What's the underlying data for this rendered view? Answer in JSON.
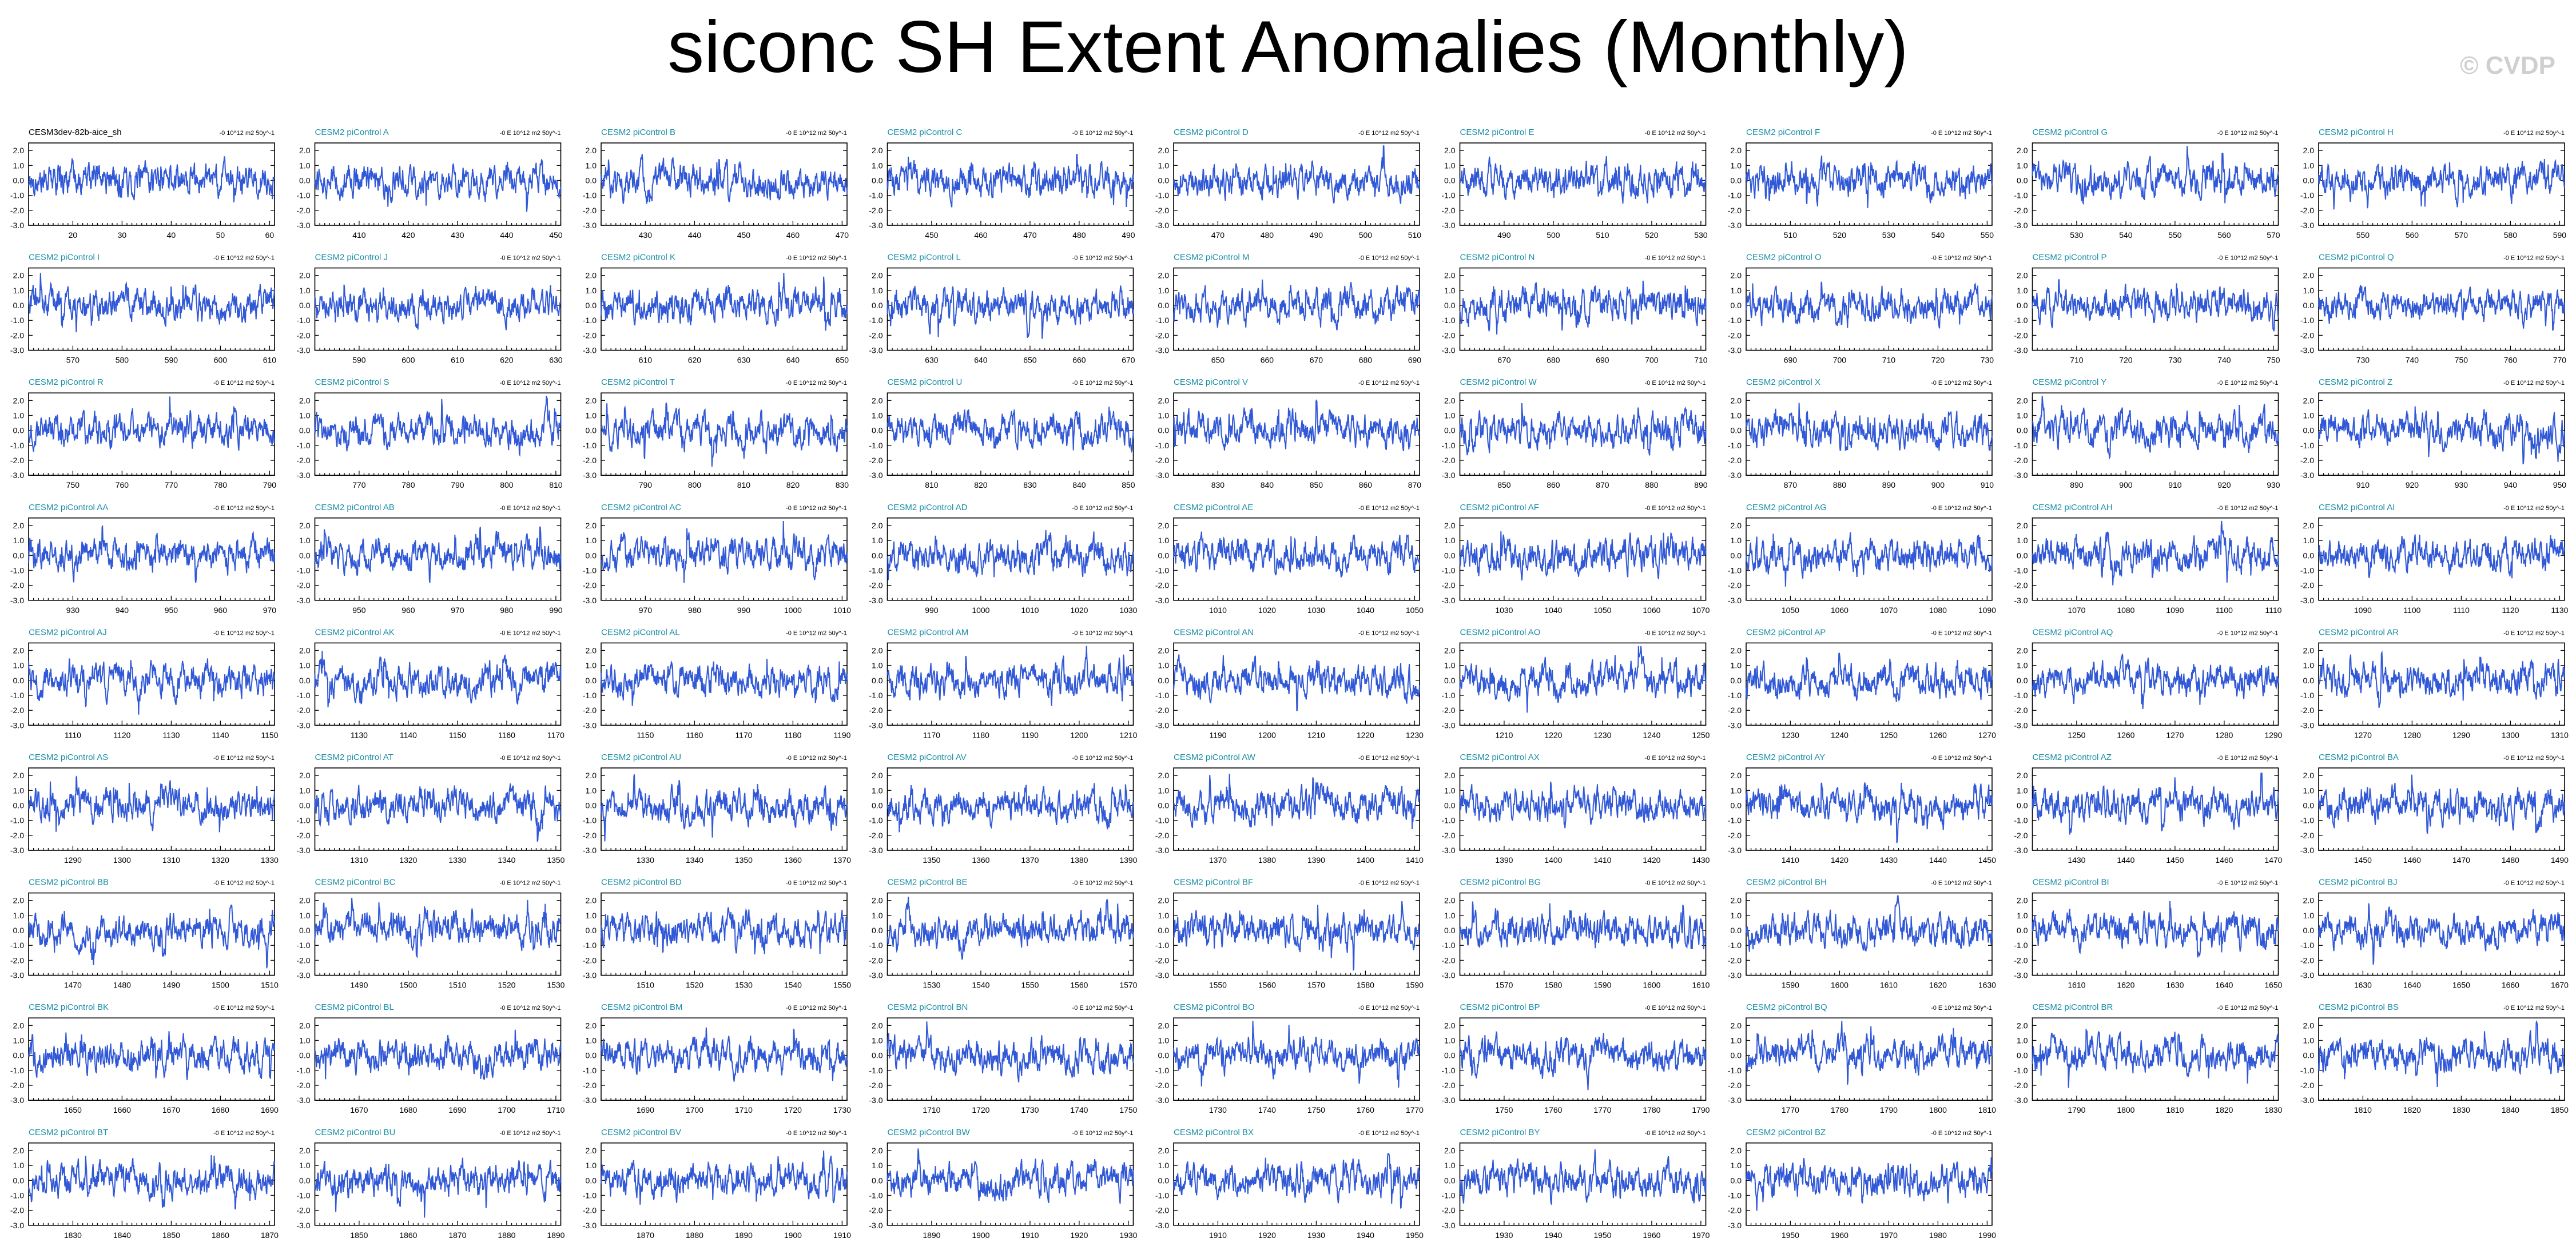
{
  "title": "siconc SH Extent Anomalies (Monthly)",
  "watermark": "© CVDP",
  "colors": {
    "series": "#3158d6",
    "panel_title": "#1a8fa6",
    "first_title": "#000000",
    "watermark": "#cfcfcf"
  },
  "chart_data": {
    "type": "line",
    "layout": "small-multiples",
    "columns": 9,
    "units": "E 10^12 m2 50y^-1",
    "units_value": "-0",
    "ylim": [
      -3,
      2.5
    ],
    "yticks": [
      "2.0",
      "1.0",
      "0.0",
      "-1.0",
      "-2.0",
      "-3.0"
    ],
    "panels": [
      {
        "name": "CESM3dev-82b-aice_sh",
        "xlim": [
          11,
          61
        ],
        "xticks": [
          20,
          30,
          40,
          50,
          60
        ],
        "units": "-0 10^12 m2 50y^-1",
        "yticks": [
          "2.0",
          "1.0",
          "0.0",
          "-1.0",
          "-2.0",
          "-3.0"
        ]
      },
      {
        "name": "CESM2 piControl A",
        "xlim": [
          401,
          451
        ],
        "xticks": [
          410,
          420,
          430,
          440,
          450
        ]
      },
      {
        "name": "CESM2 piControl B",
        "xlim": [
          421,
          471
        ],
        "xticks": [
          430,
          440,
          450,
          460,
          470
        ]
      },
      {
        "name": "CESM2 piControl C",
        "xlim": [
          441,
          491
        ],
        "xticks": [
          450,
          460,
          470,
          480,
          490
        ]
      },
      {
        "name": "CESM2 piControl D",
        "xlim": [
          461,
          511
        ],
        "xticks": [
          470,
          480,
          490,
          500,
          510
        ]
      },
      {
        "name": "CESM2 piControl E",
        "xlim": [
          481,
          531
        ],
        "xticks": [
          490,
          500,
          510,
          520,
          530
        ]
      },
      {
        "name": "CESM2 piControl F",
        "xlim": [
          501,
          551
        ],
        "xticks": [
          510,
          520,
          530,
          540,
          550
        ]
      },
      {
        "name": "CESM2 piControl G",
        "xlim": [
          521,
          571
        ],
        "xticks": [
          530,
          540,
          550,
          560,
          570
        ]
      },
      {
        "name": "CESM2 piControl H",
        "xlim": [
          541,
          591
        ],
        "xticks": [
          550,
          560,
          570,
          580,
          590
        ]
      },
      {
        "name": "CESM2 piControl I",
        "xlim": [
          561,
          611
        ],
        "xticks": [
          570,
          580,
          590,
          600,
          610
        ]
      },
      {
        "name": "CESM2 piControl J",
        "xlim": [
          581,
          631
        ],
        "xticks": [
          590,
          600,
          610,
          620,
          630
        ]
      },
      {
        "name": "CESM2 piControl K",
        "xlim": [
          601,
          651
        ],
        "xticks": [
          610,
          620,
          630,
          640,
          650
        ]
      },
      {
        "name": "CESM2 piControl L",
        "xlim": [
          621,
          671
        ],
        "xticks": [
          630,
          640,
          650,
          660,
          670
        ]
      },
      {
        "name": "CESM2 piControl M",
        "xlim": [
          641,
          691
        ],
        "xticks": [
          650,
          660,
          670,
          680,
          690
        ]
      },
      {
        "name": "CESM2 piControl N",
        "xlim": [
          661,
          711
        ],
        "xticks": [
          670,
          680,
          690,
          700,
          710
        ]
      },
      {
        "name": "CESM2 piControl O",
        "xlim": [
          681,
          731
        ],
        "xticks": [
          690,
          700,
          710,
          720,
          730
        ]
      },
      {
        "name": "CESM2 piControl P",
        "xlim": [
          701,
          751
        ],
        "xticks": [
          710,
          720,
          730,
          740,
          750
        ]
      },
      {
        "name": "CESM2 piControl Q",
        "xlim": [
          721,
          771
        ],
        "xticks": [
          730,
          740,
          750,
          760,
          770
        ]
      },
      {
        "name": "CESM2 piControl R",
        "xlim": [
          741,
          791
        ],
        "xticks": [
          750,
          760,
          770,
          780,
          790
        ]
      },
      {
        "name": "CESM2 piControl S",
        "xlim": [
          761,
          811
        ],
        "xticks": [
          770,
          780,
          790,
          800,
          810
        ]
      },
      {
        "name": "CESM2 piControl T",
        "xlim": [
          781,
          831
        ],
        "xticks": [
          790,
          800,
          810,
          820,
          830
        ]
      },
      {
        "name": "CESM2 piControl U",
        "xlim": [
          801,
          851
        ],
        "xticks": [
          810,
          820,
          830,
          840,
          850
        ]
      },
      {
        "name": "CESM2 piControl V",
        "xlim": [
          821,
          871
        ],
        "xticks": [
          830,
          840,
          850,
          860,
          870
        ]
      },
      {
        "name": "CESM2 piControl W",
        "xlim": [
          841,
          891
        ],
        "xticks": [
          850,
          860,
          870,
          880,
          890
        ]
      },
      {
        "name": "CESM2 piControl X",
        "xlim": [
          861,
          911
        ],
        "xticks": [
          870,
          880,
          890,
          900,
          910
        ]
      },
      {
        "name": "CESM2 piControl Y",
        "xlim": [
          881,
          931
        ],
        "xticks": [
          890,
          900,
          910,
          920,
          930
        ]
      },
      {
        "name": "CESM2 piControl Z",
        "xlim": [
          901,
          951
        ],
        "xticks": [
          910,
          920,
          930,
          940,
          950
        ]
      },
      {
        "name": "CESM2 piControl AA",
        "xlim": [
          921,
          971
        ],
        "xticks": [
          930,
          940,
          950,
          960,
          970
        ]
      },
      {
        "name": "CESM2 piControl AB",
        "xlim": [
          941,
          991
        ],
        "xticks": [
          950,
          960,
          970,
          980,
          990
        ]
      },
      {
        "name": "CESM2 piControl AC",
        "xlim": [
          961,
          1011
        ],
        "xticks": [
          970,
          980,
          990,
          1000,
          1010
        ]
      },
      {
        "name": "CESM2 piControl AD",
        "xlim": [
          981,
          1031
        ],
        "xticks": [
          990,
          1000,
          1010,
          1020,
          1030
        ]
      },
      {
        "name": "CESM2 piControl AE",
        "xlim": [
          1001,
          1051
        ],
        "xticks": [
          1010,
          1020,
          1030,
          1040,
          1050
        ]
      },
      {
        "name": "CESM2 piControl AF",
        "xlim": [
          1021,
          1071
        ],
        "xticks": [
          1030,
          1040,
          1050,
          1060,
          1070
        ]
      },
      {
        "name": "CESM2 piControl AG",
        "xlim": [
          1041,
          1091
        ],
        "xticks": [
          1050,
          1060,
          1070,
          1080,
          1090
        ]
      },
      {
        "name": "CESM2 piControl AH",
        "xlim": [
          1061,
          1111
        ],
        "xticks": [
          1070,
          1080,
          1090,
          1100,
          1110
        ]
      },
      {
        "name": "CESM2 piControl AI",
        "xlim": [
          1081,
          1131
        ],
        "xticks": [
          1090,
          1100,
          1110,
          1120,
          1130
        ]
      },
      {
        "name": "CESM2 piControl AJ",
        "xlim": [
          1101,
          1151
        ],
        "xticks": [
          1110,
          1120,
          1130,
          1140,
          1150
        ]
      },
      {
        "name": "CESM2 piControl AK",
        "xlim": [
          1121,
          1171
        ],
        "xticks": [
          1130,
          1140,
          1150,
          1160,
          1170
        ]
      },
      {
        "name": "CESM2 piControl AL",
        "xlim": [
          1141,
          1191
        ],
        "xticks": [
          1150,
          1160,
          1170,
          1180,
          1190
        ]
      },
      {
        "name": "CESM2 piControl AM",
        "xlim": [
          1161,
          1211
        ],
        "xticks": [
          1170,
          1180,
          1190,
          1200,
          1210
        ]
      },
      {
        "name": "CESM2 piControl AN",
        "xlim": [
          1181,
          1231
        ],
        "xticks": [
          1190,
          1200,
          1210,
          1220,
          1230
        ]
      },
      {
        "name": "CESM2 piControl AO",
        "xlim": [
          1201,
          1251
        ],
        "xticks": [
          1210,
          1220,
          1230,
          1240,
          1250
        ]
      },
      {
        "name": "CESM2 piControl AP",
        "xlim": [
          1221,
          1271
        ],
        "xticks": [
          1230,
          1240,
          1250,
          1260,
          1270
        ]
      },
      {
        "name": "CESM2 piControl AQ",
        "xlim": [
          1241,
          1291
        ],
        "xticks": [
          1250,
          1260,
          1270,
          1280,
          1290
        ]
      },
      {
        "name": "CESM2 piControl AR",
        "xlim": [
          1261,
          1311
        ],
        "xticks": [
          1270,
          1280,
          1290,
          1300,
          1310
        ]
      },
      {
        "name": "CESM2 piControl AS",
        "xlim": [
          1281,
          1331
        ],
        "xticks": [
          1290,
          1300,
          1310,
          1320,
          1330
        ]
      },
      {
        "name": "CESM2 piControl AT",
        "xlim": [
          1301,
          1351
        ],
        "xticks": [
          1310,
          1320,
          1330,
          1340,
          1350
        ]
      },
      {
        "name": "CESM2 piControl AU",
        "xlim": [
          1321,
          1371
        ],
        "xticks": [
          1330,
          1340,
          1350,
          1360,
          1370
        ]
      },
      {
        "name": "CESM2 piControl AV",
        "xlim": [
          1341,
          1391
        ],
        "xticks": [
          1350,
          1360,
          1370,
          1380,
          1390
        ]
      },
      {
        "name": "CESM2 piControl AW",
        "xlim": [
          1361,
          1411
        ],
        "xticks": [
          1370,
          1380,
          1390,
          1400,
          1410
        ]
      },
      {
        "name": "CESM2 piControl AX",
        "xlim": [
          1381,
          1431
        ],
        "xticks": [
          1390,
          1400,
          1410,
          1420,
          1430
        ]
      },
      {
        "name": "CESM2 piControl AY",
        "xlim": [
          1401,
          1451
        ],
        "xticks": [
          1410,
          1420,
          1430,
          1440,
          1450
        ]
      },
      {
        "name": "CESM2 piControl AZ",
        "xlim": [
          1421,
          1471
        ],
        "xticks": [
          1430,
          1440,
          1450,
          1460,
          1470
        ]
      },
      {
        "name": "CESM2 piControl BA",
        "xlim": [
          1441,
          1491
        ],
        "xticks": [
          1450,
          1460,
          1470,
          1480,
          1490
        ]
      },
      {
        "name": "CESM2 piControl BB",
        "xlim": [
          1461,
          1511
        ],
        "xticks": [
          1470,
          1480,
          1490,
          1500,
          1510
        ]
      },
      {
        "name": "CESM2 piControl BC",
        "xlim": [
          1481,
          1531
        ],
        "xticks": [
          1490,
          1500,
          1510,
          1520,
          1530
        ]
      },
      {
        "name": "CESM2 piControl BD",
        "xlim": [
          1501,
          1551
        ],
        "xticks": [
          1510,
          1520,
          1530,
          1540,
          1550
        ]
      },
      {
        "name": "CESM2 piControl BE",
        "xlim": [
          1521,
          1571
        ],
        "xticks": [
          1530,
          1540,
          1550,
          1560,
          1570
        ]
      },
      {
        "name": "CESM2 piControl BF",
        "xlim": [
          1541,
          1591
        ],
        "xticks": [
          1550,
          1560,
          1570,
          1580,
          1590
        ]
      },
      {
        "name": "CESM2 piControl BG",
        "xlim": [
          1561,
          1611
        ],
        "xticks": [
          1570,
          1580,
          1590,
          1600,
          1610
        ]
      },
      {
        "name": "CESM2 piControl BH",
        "xlim": [
          1581,
          1631
        ],
        "xticks": [
          1590,
          1600,
          1610,
          1620,
          1630
        ]
      },
      {
        "name": "CESM2 piControl BI",
        "xlim": [
          1601,
          1651
        ],
        "xticks": [
          1610,
          1620,
          1630,
          1640,
          1650
        ]
      },
      {
        "name": "CESM2 piControl BJ",
        "xlim": [
          1621,
          1671
        ],
        "xticks": [
          1630,
          1640,
          1650,
          1660,
          1670
        ]
      },
      {
        "name": "CESM2 piControl BK",
        "xlim": [
          1641,
          1691
        ],
        "xticks": [
          1650,
          1660,
          1670,
          1680,
          1690
        ]
      },
      {
        "name": "CESM2 piControl BL",
        "xlim": [
          1661,
          1711
        ],
        "xticks": [
          1670,
          1680,
          1690,
          1700,
          1710
        ]
      },
      {
        "name": "CESM2 piControl BM",
        "xlim": [
          1681,
          1731
        ],
        "xticks": [
          1690,
          1700,
          1710,
          1720,
          1730
        ]
      },
      {
        "name": "CESM2 piControl BN",
        "xlim": [
          1701,
          1751
        ],
        "xticks": [
          1710,
          1720,
          1730,
          1740,
          1750
        ]
      },
      {
        "name": "CESM2 piControl BO",
        "xlim": [
          1721,
          1771
        ],
        "xticks": [
          1730,
          1740,
          1750,
          1760,
          1770
        ]
      },
      {
        "name": "CESM2 piControl BP",
        "xlim": [
          1741,
          1791
        ],
        "xticks": [
          1750,
          1760,
          1770,
          1780,
          1790
        ]
      },
      {
        "name": "CESM2 piControl BQ",
        "xlim": [
          1761,
          1811
        ],
        "xticks": [
          1770,
          1780,
          1790,
          1800,
          1810
        ]
      },
      {
        "name": "CESM2 piControl BR",
        "xlim": [
          1781,
          1831
        ],
        "xticks": [
          1790,
          1800,
          1810,
          1820,
          1830
        ]
      },
      {
        "name": "CESM2 piControl BS",
        "xlim": [
          1801,
          1851
        ],
        "xticks": [
          1810,
          1820,
          1830,
          1840,
          1850
        ]
      },
      {
        "name": "CESM2 piControl BT",
        "xlim": [
          1821,
          1871
        ],
        "xticks": [
          1830,
          1840,
          1850,
          1860,
          1870
        ]
      },
      {
        "name": "CESM2 piControl BU",
        "xlim": [
          1841,
          1891
        ],
        "xticks": [
          1850,
          1860,
          1870,
          1880,
          1890
        ]
      },
      {
        "name": "CESM2 piControl BV",
        "xlim": [
          1861,
          1911
        ],
        "xticks": [
          1870,
          1880,
          1890,
          1900,
          1910
        ]
      },
      {
        "name": "CESM2 piControl BW",
        "xlim": [
          1881,
          1931
        ],
        "xticks": [
          1890,
          1900,
          1910,
          1920,
          1930
        ]
      },
      {
        "name": "CESM2 piControl BX",
        "xlim": [
          1901,
          1951
        ],
        "xticks": [
          1910,
          1920,
          1930,
          1940,
          1950
        ]
      },
      {
        "name": "CESM2 piControl BY",
        "xlim": [
          1921,
          1971
        ],
        "xticks": [
          1930,
          1940,
          1950,
          1960,
          1970
        ]
      },
      {
        "name": "CESM2 piControl BZ",
        "xlim": [
          1941,
          1991
        ],
        "xticks": [
          1950,
          1960,
          1970,
          1980,
          1990
        ]
      }
    ]
  }
}
